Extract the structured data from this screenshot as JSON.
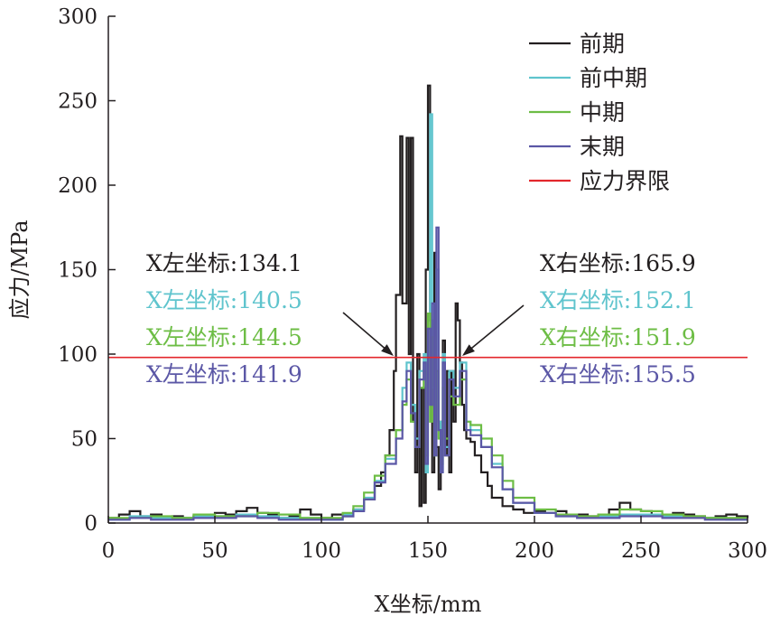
{
  "chart_data": {
    "type": "line",
    "xlabel": "X坐标/mm",
    "ylabel": "应力/MPa",
    "xlim": [
      0,
      300
    ],
    "ylim": [
      0,
      300
    ],
    "x_ticks": [
      "0",
      "50",
      "100",
      "150",
      "200",
      "250",
      "300"
    ],
    "y_ticks": [
      "0",
      "50",
      "100",
      "150",
      "200",
      "250",
      "300"
    ],
    "grid": false,
    "legend_position": "top-right",
    "series": [
      {
        "name": "前期",
        "color": "#231f20",
        "x": [
          0,
          5,
          10,
          15,
          20,
          25,
          30,
          35,
          40,
          45,
          50,
          55,
          60,
          65,
          70,
          75,
          80,
          85,
          90,
          95,
          100,
          105,
          110,
          115,
          120,
          125,
          128,
          130,
          132,
          134,
          135,
          137,
          138,
          140,
          141,
          142,
          143,
          144,
          145,
          146,
          147,
          148,
          149,
          150,
          151,
          152,
          153,
          154,
          155,
          156,
          157,
          158,
          159,
          160,
          161,
          162,
          163,
          164,
          165,
          166,
          167,
          168,
          170,
          172,
          175,
          178,
          180,
          185,
          190,
          195,
          200,
          205,
          210,
          215,
          220,
          225,
          230,
          235,
          240,
          245,
          250,
          255,
          260,
          265,
          270,
          275,
          280,
          285,
          290,
          295,
          300
        ],
        "y": [
          3,
          5,
          7,
          4,
          5,
          3,
          4,
          3,
          4,
          5,
          6,
          5,
          7,
          9,
          6,
          5,
          3,
          4,
          8,
          5,
          3,
          5,
          4,
          8,
          14,
          22,
          30,
          40,
          55,
          90,
          135,
          229,
          130,
          228,
          100,
          228,
          60,
          30,
          100,
          10,
          80,
          12,
          150,
          259,
          120,
          30,
          160,
          45,
          20,
          60,
          108,
          40,
          90,
          30,
          90,
          60,
          130,
          120,
          95,
          70,
          55,
          50,
          48,
          40,
          30,
          22,
          15,
          10,
          8,
          6,
          7,
          6,
          7,
          5,
          5,
          4,
          5,
          8,
          12,
          8,
          7,
          5,
          4,
          6,
          5,
          4,
          3,
          4,
          5,
          4,
          3
        ]
      },
      {
        "name": "前中期",
        "color": "#5fc4cd",
        "x": [
          0,
          10,
          20,
          30,
          40,
          50,
          60,
          70,
          80,
          90,
          100,
          110,
          115,
          120,
          125,
          130,
          135,
          138,
          140,
          142,
          144,
          146,
          148,
          149,
          150,
          151,
          152,
          153,
          154,
          155,
          156,
          157,
          158,
          160,
          162,
          165,
          168,
          170,
          175,
          180,
          185,
          190,
          200,
          210,
          220,
          230,
          240,
          250,
          260,
          270,
          280,
          290,
          300
        ],
        "y": [
          2,
          4,
          3,
          3,
          4,
          4,
          5,
          4,
          3,
          3,
          2,
          5,
          8,
          15,
          25,
          38,
          55,
          80,
          95,
          70,
          50,
          90,
          100,
          30,
          120,
          242,
          80,
          40,
          150,
          60,
          30,
          100,
          45,
          90,
          80,
          95,
          60,
          55,
          45,
          35,
          20,
          12,
          6,
          4,
          3,
          4,
          5,
          5,
          4,
          3,
          3,
          2,
          2
        ]
      },
      {
        "name": "中期",
        "color": "#6dbd45",
        "x": [
          0,
          10,
          20,
          30,
          40,
          50,
          60,
          70,
          80,
          90,
          100,
          110,
          115,
          120,
          125,
          130,
          135,
          138,
          140,
          142,
          144,
          146,
          148,
          149,
          150,
          151,
          152,
          153,
          154,
          155,
          156,
          157,
          158,
          160,
          162,
          165,
          168,
          170,
          175,
          180,
          185,
          190,
          200,
          210,
          220,
          230,
          240,
          250,
          260,
          270,
          280,
          290,
          300
        ],
        "y": [
          3,
          3,
          4,
          3,
          5,
          4,
          4,
          6,
          5,
          3,
          3,
          6,
          10,
          18,
          28,
          40,
          55,
          70,
          85,
          60,
          45,
          80,
          90,
          40,
          124,
          60,
          110,
          40,
          90,
          50,
          35,
          80,
          50,
          75,
          70,
          85,
          60,
          58,
          50,
          40,
          25,
          15,
          8,
          5,
          4,
          5,
          8,
          7,
          5,
          4,
          3,
          3,
          3
        ]
      },
      {
        "name": "末期",
        "color": "#5b57a6",
        "x": [
          0,
          10,
          20,
          30,
          40,
          50,
          60,
          70,
          80,
          90,
          100,
          110,
          115,
          120,
          125,
          130,
          135,
          138,
          140,
          142,
          144,
          146,
          148,
          149,
          150,
          151,
          152,
          153,
          154,
          155,
          156,
          157,
          158,
          160,
          162,
          165,
          168,
          170,
          175,
          180,
          185,
          190,
          200,
          210,
          220,
          230,
          240,
          250,
          260,
          270,
          280,
          290,
          300
        ],
        "y": [
          2,
          3,
          2,
          2,
          3,
          3,
          4,
          3,
          2,
          2,
          2,
          4,
          7,
          14,
          24,
          35,
          50,
          72,
          90,
          65,
          45,
          85,
          95,
          35,
          115,
          70,
          130,
          40,
          175,
          55,
          30,
          95,
          40,
          85,
          75,
          90,
          55,
          52,
          45,
          33,
          20,
          12,
          6,
          4,
          3,
          3,
          4,
          4,
          3,
          3,
          2,
          2,
          2
        ]
      },
      {
        "name": "应力界限",
        "color": "#e3272c",
        "x": [
          0,
          300
        ],
        "y": [
          98,
          98
        ]
      }
    ],
    "annotations": {
      "left": [
        {
          "text": "X左坐标:134.1",
          "color": "#231f20"
        },
        {
          "text": "X左坐标:140.5",
          "color": "#5fc4cd"
        },
        {
          "text": "X左坐标:144.5",
          "color": "#6dbd45"
        },
        {
          "text": "X左坐标:141.9",
          "color": "#5b57a6"
        }
      ],
      "right": [
        {
          "text": "X右坐标:165.9",
          "color": "#231f20"
        },
        {
          "text": "X右坐标:152.1",
          "color": "#5fc4cd"
        },
        {
          "text": "X右坐标:151.9",
          "color": "#6dbd45"
        },
        {
          "text": "X右坐标:155.5",
          "color": "#5b57a6"
        }
      ],
      "arrow_targets": [
        {
          "x": 134.1,
          "y": 98
        },
        {
          "x": 165.9,
          "y": 98
        }
      ]
    }
  }
}
